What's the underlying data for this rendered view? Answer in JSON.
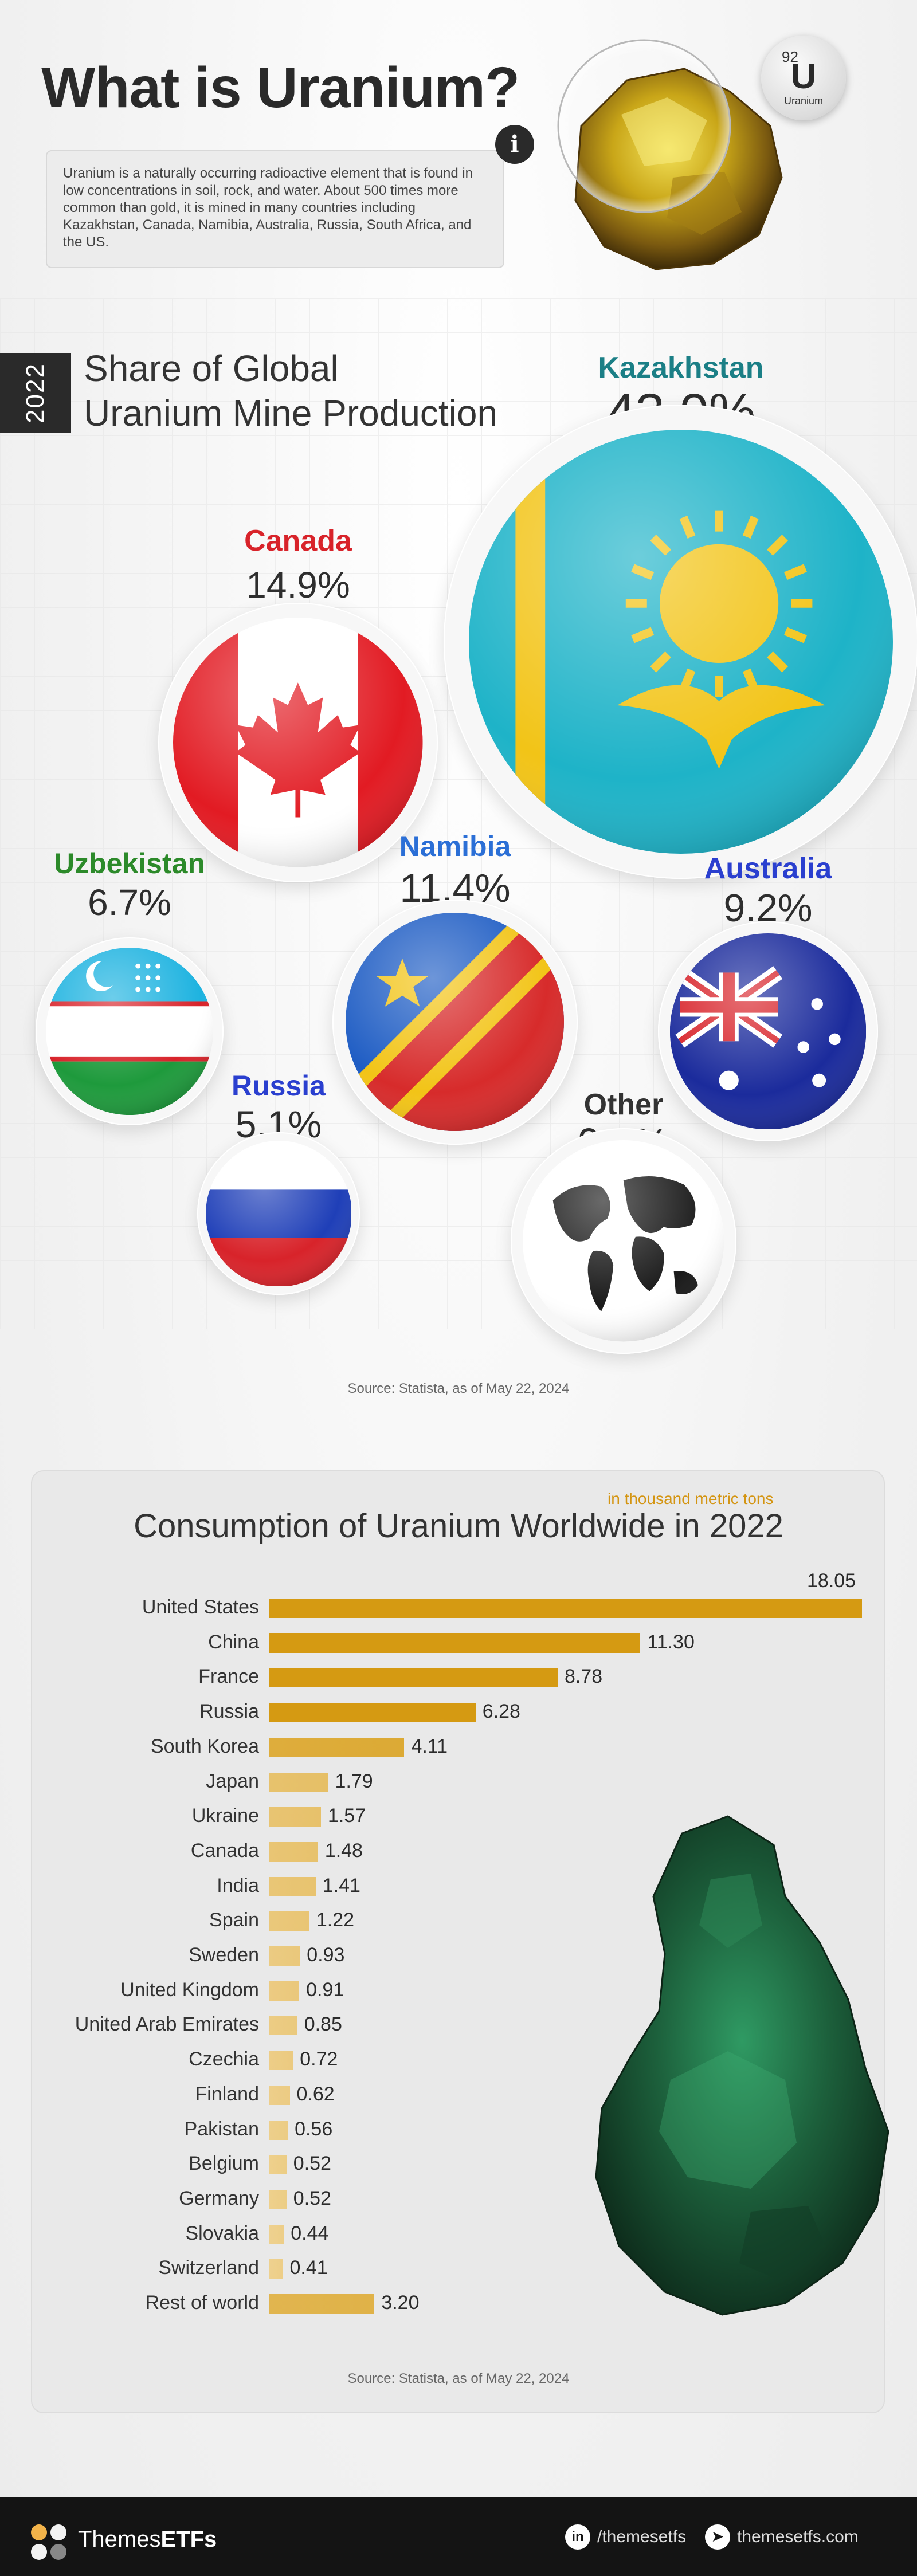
{
  "header": {
    "title": "What is Uranium?",
    "intro": "Uranium is a naturally occurring radioactive element that is found in low concentrations in soil, rock, and water. About 500 times more common than gold, it is mined in many countries including Kazakhstan, Canada, Namibia, Australia, Russia, South Africa, and the US.",
    "info_icon": "info-icon",
    "element": {
      "number": "92",
      "symbol": "U",
      "name": "Uranium"
    }
  },
  "production": {
    "year": "2022",
    "title_line1": "Share of Global",
    "title_line2": "Uranium Mine Production",
    "source": "Source: Statista, as of May 22, 2024"
  },
  "consumption": {
    "units": "in thousand metric tons",
    "source": "Source: Statista, as of May 22, 2024"
  },
  "footer": {
    "brand_light": "Themes",
    "brand_bold": "ETFs",
    "linkedin_icon": "linkedin-icon",
    "linkedin_handle": "/themesetfs",
    "website_icon": "cursor-icon",
    "website": "themesetfs.com"
  },
  "colors": {
    "bar_top": "#d59a12",
    "bar_light": "#f1d79d",
    "kazakhstan": "#1b7f86",
    "canada": "#d8232a",
    "uzbekistan": "#2c8a2a",
    "namibia": "#2b6fd6",
    "australia": "#2a3fcf",
    "russia": "#2a3fcf",
    "other": "#333333"
  },
  "chart_data": [
    {
      "type": "bubble",
      "title": "Share of Global Uranium Mine Production",
      "year": "2022",
      "unit": "%",
      "series": [
        {
          "name": "Kazakhstan",
          "value": 43.0,
          "label": "43.0%",
          "color": "#1b7f86",
          "icon": "kazakhstan-flag-icon"
        },
        {
          "name": "Canada",
          "value": 14.9,
          "label": "14.9%",
          "color": "#d8232a",
          "icon": "canada-flag-icon"
        },
        {
          "name": "Uzbekistan",
          "value": 6.7,
          "label": "6.7%",
          "color": "#2c8a2a",
          "icon": "uzbekistan-flag-icon"
        },
        {
          "name": "Namibia",
          "value": 11.4,
          "label": "11.4%",
          "color": "#2b6fd6",
          "icon": "namibia-flag-icon"
        },
        {
          "name": "Australia",
          "value": 9.2,
          "label": "9.2%",
          "color": "#2a3fcf",
          "icon": "australia-flag-icon"
        },
        {
          "name": "Russia",
          "value": 5.1,
          "label": "5.1%",
          "color": "#2a3fcf",
          "icon": "russia-flag-icon"
        },
        {
          "name": "Other",
          "value": 9.7,
          "label": "9.7%",
          "color": "#333333",
          "icon": "globe-icon"
        }
      ]
    },
    {
      "type": "bar",
      "orientation": "horizontal",
      "title": "Consumption of Uranium Worldwide in 2022",
      "unit": "in thousand metric tons",
      "categories": [
        "United States",
        "China",
        "France",
        "Russia",
        "South Korea",
        "Japan",
        "Ukraine",
        "Canada",
        "India",
        "Spain",
        "Sweden",
        "United Kingdom",
        "United Arab Emirates",
        "Czechia",
        "Finland",
        "Pakistan",
        "Belgium",
        "Germany",
        "Slovakia",
        "Switzerland",
        "Rest of world"
      ],
      "values": [
        18.05,
        11.3,
        8.78,
        6.28,
        4.11,
        1.79,
        1.57,
        1.48,
        1.41,
        1.22,
        0.93,
        0.91,
        0.85,
        0.72,
        0.62,
        0.56,
        0.52,
        0.52,
        0.44,
        0.41,
        3.2
      ],
      "value_labels": [
        "18.05",
        "11.30",
        "8.78",
        "6.28",
        "4.11",
        "1.79",
        "1.57",
        "1.48",
        "1.41",
        "1.22",
        "0.93",
        "0.91",
        "0.85",
        "0.72",
        "0.62",
        "0.56",
        "0.52",
        "0.52",
        "0.44",
        "0.41",
        "3.20"
      ],
      "xlim": [
        0,
        18.05
      ],
      "grid": false
    }
  ]
}
